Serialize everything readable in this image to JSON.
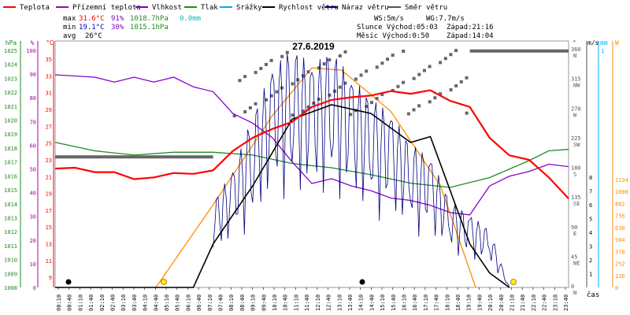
{
  "chart_data": {
    "type": "line",
    "title": "27.6.2019",
    "xlabel": "čas",
    "legend": [
      {
        "name": "Teplota",
        "color": "#ff0000"
      },
      {
        "name": "Přízemní teplota",
        "color": "#aa00aa"
      },
      {
        "name": "Vlhkost",
        "color": "#7f00c8"
      },
      {
        "name": "Tlak",
        "color": "#228b22"
      },
      {
        "name": "Srážky",
        "color": "#00aaff"
      },
      {
        "name": "Rychlost větru",
        "color": "#000000"
      },
      {
        "name": "Náraz větru",
        "color": "#000080"
      },
      {
        "name": "Směr větru",
        "color": "#555555"
      }
    ],
    "stats": {
      "max": {
        "label": "max",
        "temp": "31.6°C",
        "hum": "91%",
        "press": "1018.7hPa",
        "rain": "0.0mm"
      },
      "min": {
        "label": "min",
        "temp": "19.1°C",
        "hum": "30%",
        "press": "1015.1hPa"
      },
      "avg": {
        "label": "avg",
        "temp": "26°C"
      }
    },
    "info": {
      "ws": "WS:5m/s",
      "wg": "WG:7.7m/s",
      "sun": "Slunce Východ:05:03",
      "sun_set": "Západ:21:16",
      "moon": "Měsíc  Východ:0:50",
      "moon_set": "Západ:14:04"
    },
    "axes": {
      "hpa": {
        "label": "hPa",
        "ticks": [
          "1025",
          "1024",
          "1023",
          "1022",
          "1021",
          "1020",
          "1019",
          "1018",
          "1017",
          "1016",
          "1015",
          "1014",
          "1013",
          "1012",
          "1011",
          "1010",
          "1009",
          "1008"
        ]
      },
      "pct": {
        "label": "%",
        "ticks": [
          "100",
          "90",
          "80",
          "70",
          "60",
          "50",
          "40",
          "30",
          "20",
          "10",
          "0"
        ]
      },
      "degc": {
        "label": "°C",
        "ticks": [
          "35",
          "33",
          "31",
          "29",
          "27",
          "25",
          "23",
          "21",
          "19",
          "17",
          "15",
          "13",
          "11",
          "9"
        ]
      },
      "dir": {
        "label": "°",
        "ticks": [
          "360",
          "315",
          "270",
          "225",
          "180",
          "135",
          "90",
          "45",
          "0"
        ],
        "names": [
          "N",
          "NW",
          "W",
          "SW",
          "S",
          "SE",
          "E",
          "NE",
          "N"
        ]
      },
      "ms": {
        "label": "m/s",
        "ticks": [
          "8",
          "7",
          "6",
          "5",
          "4",
          "3",
          "2",
          "1"
        ]
      },
      "mm": {
        "label": "mm",
        "ticks": [
          "1"
        ]
      },
      "w": {
        "label": "W",
        "ticks": [
          "1134",
          "1008",
          "882",
          "756",
          "630",
          "504",
          "378",
          "252",
          "126",
          "0"
        ]
      }
    },
    "x_ticks": [
      "00:10",
      "00:40",
      "01:10",
      "01:40",
      "02:10",
      "02:40",
      "03:10",
      "03:40",
      "04:10",
      "04:40",
      "05:10",
      "05:40",
      "06:10",
      "06:40",
      "07:10",
      "07:40",
      "08:10",
      "08:40",
      "09:10",
      "09:40",
      "10:10",
      "10:40",
      "11:10",
      "11:40",
      "12:10",
      "12:40",
      "13:10",
      "13:40",
      "14:10",
      "14:40",
      "15:10",
      "15:40",
      "16:10",
      "16:40",
      "17:10",
      "17:40",
      "18:10",
      "18:40",
      "19:10",
      "19:40",
      "20:10",
      "20:40",
      "21:10",
      "21:40",
      "22:10",
      "22:40",
      "23:10",
      "23:40"
    ],
    "series": {
      "temp": [
        [
          0,
          22.5
        ],
        [
          1,
          22.6
        ],
        [
          2,
          22.1
        ],
        [
          3,
          22.1
        ],
        [
          4,
          21.3
        ],
        [
          5,
          21.5
        ],
        [
          6,
          22.0
        ],
        [
          7,
          21.9
        ],
        [
          8,
          22.3
        ],
        [
          9,
          24.5
        ],
        [
          10,
          26.0
        ],
        [
          11,
          27.0
        ],
        [
          12,
          27.8
        ],
        [
          13,
          29.5
        ],
        [
          14,
          30.3
        ],
        [
          15,
          30.6
        ],
        [
          16,
          30.8
        ],
        [
          17,
          31.3
        ],
        [
          18,
          31.0
        ],
        [
          19,
          31.4
        ],
        [
          20,
          30.2
        ],
        [
          21,
          29.5
        ],
        [
          22,
          26.0
        ],
        [
          23,
          24.0
        ],
        [
          24,
          23.5
        ],
        [
          25,
          21.5
        ],
        [
          26,
          19.1
        ]
      ],
      "hum": [
        [
          0,
          88
        ],
        [
          2,
          87
        ],
        [
          3,
          85
        ],
        [
          4,
          87
        ],
        [
          5,
          85
        ],
        [
          6,
          87
        ],
        [
          7,
          83
        ],
        [
          8,
          81
        ],
        [
          9,
          72
        ],
        [
          10,
          68
        ],
        [
          11,
          62
        ],
        [
          12,
          52
        ],
        [
          13,
          43
        ],
        [
          14,
          45
        ],
        [
          15,
          42
        ],
        [
          16,
          40
        ],
        [
          17,
          37
        ],
        [
          18,
          36
        ],
        [
          19,
          34
        ],
        [
          20,
          31
        ],
        [
          21,
          30
        ],
        [
          22,
          42
        ],
        [
          23,
          46
        ],
        [
          24,
          48
        ],
        [
          25,
          51
        ],
        [
          26,
          50
        ]
      ],
      "press": [
        [
          0,
          1018.3
        ],
        [
          2,
          1017.7
        ],
        [
          4,
          1017.4
        ],
        [
          6,
          1017.6
        ],
        [
          8,
          1017.6
        ],
        [
          10,
          1017.4
        ],
        [
          12,
          1016.8
        ],
        [
          14,
          1016.5
        ],
        [
          16,
          1016.0
        ],
        [
          18,
          1015.4
        ],
        [
          20,
          1015.1
        ],
        [
          22,
          1015.8
        ],
        [
          24,
          1017.0
        ],
        [
          25,
          1017.7
        ],
        [
          26,
          1017.8
        ]
      ],
      "wind_dir_avg": [
        [
          0,
          196
        ],
        [
          8,
          196
        ],
        [
          9,
          347
        ],
        [
          11,
          355
        ],
        [
          12,
          345
        ]
      ],
      "wind_dir_late": [
        [
          21,
          355
        ],
        [
          26,
          355
        ]
      ],
      "solar": [
        [
          5.1,
          0
        ],
        [
          8,
          380
        ],
        [
          11,
          790
        ],
        [
          13,
          1010
        ],
        [
          14.5,
          1000
        ],
        [
          17,
          810
        ],
        [
          19.5,
          470
        ],
        [
          21.3,
          0
        ]
      ],
      "wind_avg": [
        [
          0,
          0
        ],
        [
          7,
          0
        ],
        [
          8,
          1.5
        ],
        [
          10,
          3.5
        ],
        [
          12,
          5.8
        ],
        [
          14,
          6.3
        ],
        [
          16,
          6.0
        ],
        [
          18,
          5.0
        ],
        [
          19,
          5.2
        ],
        [
          21,
          1.5
        ],
        [
          22,
          0.5
        ],
        [
          23,
          0
        ]
      ],
      "gust_peak": [
        [
          8,
          3
        ],
        [
          9,
          4
        ],
        [
          10,
          6
        ],
        [
          11,
          7.5
        ],
        [
          12,
          8.4
        ],
        [
          13,
          7.6
        ],
        [
          14,
          8.3
        ],
        [
          15,
          7.2
        ],
        [
          16,
          6.6
        ],
        [
          17,
          6
        ],
        [
          18,
          5
        ],
        [
          19,
          4.5
        ],
        [
          20,
          3
        ],
        [
          21,
          2.5
        ],
        [
          22,
          2
        ],
        [
          23,
          0
        ]
      ]
    },
    "ranges": {
      "x": [
        0,
        26
      ],
      "temp": [
        9,
        37
      ],
      "hum": [
        0,
        102
      ],
      "press": [
        1008,
        1025.5
      ],
      "wind": [
        0,
        8.5
      ],
      "dir": [
        0,
        370
      ],
      "solar": [
        0,
        1134
      ]
    }
  }
}
